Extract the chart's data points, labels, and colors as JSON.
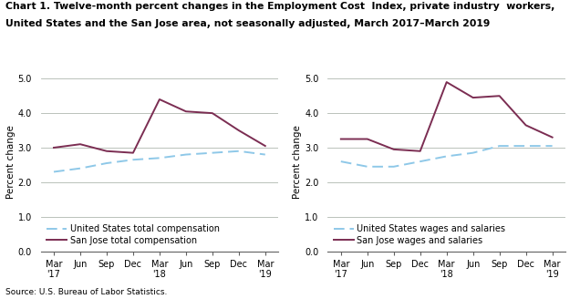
{
  "title_line1": "Chart 1. Twelve-month percent changes in the Employment Cost  Index, private industry  workers,",
  "title_line2": "United States and the San Jose area, not seasonally adjusted, March 2017–March 2019",
  "source": "Source: U.S. Bureau of Labor Statistics.",
  "ylabel": "Percent change",
  "x_labels_top": [
    "Mar",
    "Jun",
    "Sep",
    "Dec",
    "Mar",
    "Jun",
    "Sep",
    "Dec",
    "Mar"
  ],
  "x_labels_bot": [
    "'17",
    "",
    "",
    "",
    "'18",
    "",
    "",
    "",
    "'19"
  ],
  "x_positions": [
    0,
    1,
    2,
    3,
    4,
    5,
    6,
    7,
    8
  ],
  "ylim": [
    0.0,
    5.2
  ],
  "yticks": [
    0.0,
    1.0,
    2.0,
    3.0,
    4.0,
    5.0
  ],
  "chart1": {
    "us_total_comp": [
      2.3,
      2.4,
      2.55,
      2.65,
      2.7,
      2.8,
      2.85,
      2.9,
      2.8
    ],
    "sj_total_comp": [
      3.0,
      3.1,
      2.9,
      2.85,
      4.4,
      4.05,
      4.0,
      3.5,
      3.05
    ],
    "us_label": "United States total compensation",
    "sj_label": "San Jose total compensation"
  },
  "chart2": {
    "us_wages_sal": [
      2.6,
      2.45,
      2.45,
      2.6,
      2.75,
      2.85,
      3.05,
      3.05,
      3.05
    ],
    "sj_wages_sal": [
      3.25,
      3.25,
      2.95,
      2.9,
      4.9,
      4.45,
      4.5,
      3.65,
      3.3
    ],
    "us_label": "United States wages and salaries",
    "sj_label": "San Jose wages and salaries"
  },
  "us_color": "#8ec8e8",
  "sj_color": "#7b2d52",
  "grid_color": "#b0b8b0",
  "background_color": "#ffffff",
  "title_fontsize": 7.8,
  "axis_label_fontsize": 7.5,
  "tick_fontsize": 7.0,
  "legend_fontsize": 7.0,
  "source_fontsize": 6.5
}
